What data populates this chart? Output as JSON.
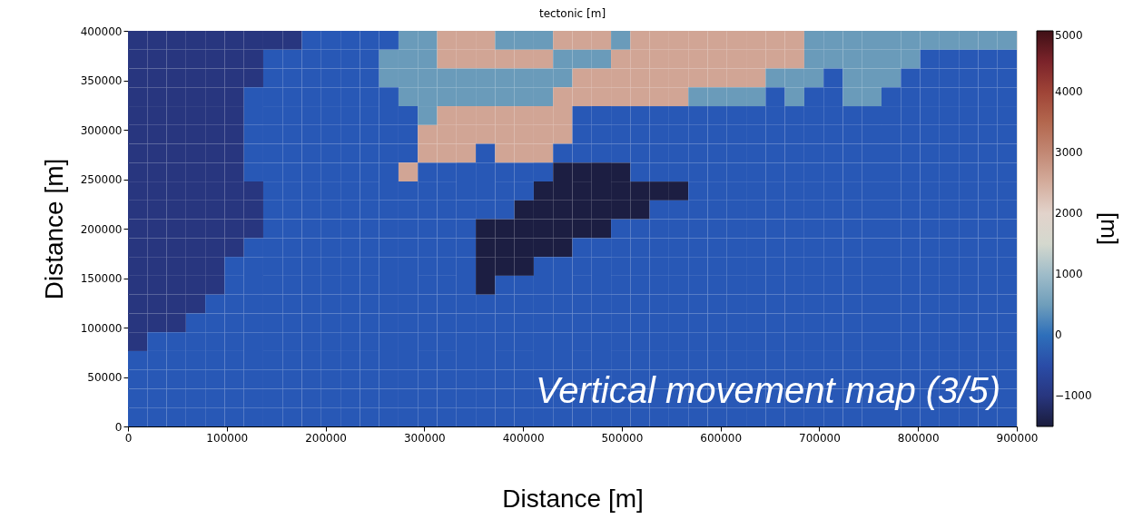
{
  "chart_data": {
    "type": "heatmap",
    "title": "tectonic [m]",
    "xlabel": "Distance [m]",
    "ylabel": "Distance [m]",
    "clabel": "[m]",
    "annotations": [
      "Vertical movement map (3/5)"
    ],
    "xlim": [
      0,
      900000
    ],
    "ylim": [
      0,
      400000
    ],
    "xticks": [
      0,
      100000,
      200000,
      300000,
      400000,
      500000,
      600000,
      700000,
      800000,
      900000
    ],
    "yticks": [
      0,
      50000,
      100000,
      150000,
      200000,
      250000,
      300000,
      350000,
      400000
    ],
    "clim": [
      -1500,
      5000
    ],
    "cticks": [
      -1000,
      0,
      1000,
      2000,
      3000,
      4000,
      5000
    ],
    "colors": [
      "#1a1c3c",
      "#2a3f95",
      "#2858b6",
      "#6a9bba",
      "#a9c2cc",
      "#e9e6e4",
      "#d8b4a6",
      "#c08470",
      "#ad5a3f",
      "#8e2a30",
      "#3f1016"
    ],
    "cells": [
      [
        -1000,
        -1000,
        -1000,
        -1000,
        -1000,
        -1000,
        -1000,
        -1000,
        -1000,
        -200,
        -200,
        -200,
        -200,
        -200,
        450,
        450,
        2600,
        2600,
        2600,
        450,
        450,
        450,
        2600,
        2600,
        2600,
        450,
        2600,
        2600,
        2600,
        2600,
        2600,
        2600,
        2600,
        2600,
        2600,
        450,
        450,
        450,
        450,
        450,
        450,
        450,
        450,
        450,
        450,
        450
      ],
      [
        -1000,
        -1000,
        -1000,
        -1000,
        -1000,
        -1000,
        -1000,
        -200,
        -200,
        -200,
        -200,
        -200,
        -200,
        450,
        450,
        450,
        2600,
        2600,
        2600,
        2600,
        2600,
        2600,
        450,
        450,
        450,
        2600,
        2600,
        2600,
        2600,
        2600,
        2600,
        2600,
        2600,
        2600,
        2600,
        450,
        450,
        450,
        450,
        450,
        450,
        -200,
        -200,
        -200,
        -200,
        -200
      ],
      [
        -1000,
        -1000,
        -1000,
        -1000,
        -1000,
        -1000,
        -1000,
        -200,
        -200,
        -200,
        -200,
        -200,
        -200,
        450,
        450,
        450,
        450,
        450,
        450,
        450,
        450,
        450,
        450,
        2600,
        2600,
        2600,
        2600,
        2600,
        2600,
        2600,
        2600,
        2600,
        2600,
        450,
        450,
        450,
        -200,
        450,
        450,
        450,
        -200,
        -200,
        -200,
        -200,
        -200,
        -200
      ],
      [
        -1000,
        -1000,
        -1000,
        -1000,
        -1000,
        -1000,
        -200,
        -200,
        -200,
        -200,
        -200,
        -200,
        -200,
        -200,
        450,
        450,
        450,
        450,
        450,
        450,
        450,
        450,
        2600,
        2600,
        2600,
        2600,
        2600,
        2600,
        2600,
        450,
        450,
        450,
        450,
        -200,
        450,
        -200,
        -200,
        450,
        450,
        -200,
        -200,
        -200,
        -200,
        -200,
        -200,
        -200
      ],
      [
        -1000,
        -1000,
        -1000,
        -1000,
        -1000,
        -1000,
        -200,
        -200,
        -200,
        -200,
        -200,
        -200,
        -200,
        -200,
        -200,
        450,
        2600,
        2600,
        2600,
        2600,
        2600,
        2600,
        2600,
        -200,
        -200,
        -200,
        -200,
        -200,
        -200,
        -200,
        -200,
        -200,
        -200,
        -200,
        -200,
        -200,
        -200,
        -200,
        -200,
        -200,
        -200,
        -200,
        -200,
        -200,
        -200,
        -200
      ],
      [
        -1000,
        -1000,
        -1000,
        -1000,
        -1000,
        -1000,
        -200,
        -200,
        -200,
        -200,
        -200,
        -200,
        -200,
        -200,
        -200,
        2600,
        2600,
        2600,
        2600,
        2600,
        2600,
        2600,
        2600,
        -200,
        -200,
        -200,
        -200,
        -200,
        -200,
        -200,
        -200,
        -200,
        -200,
        -200,
        -200,
        -200,
        -200,
        -200,
        -200,
        -200,
        -200,
        -200,
        -200,
        -200,
        -200,
        -200
      ],
      [
        -1000,
        -1000,
        -1000,
        -1000,
        -1000,
        -1000,
        -200,
        -200,
        -200,
        -200,
        -200,
        -200,
        -200,
        -200,
        -200,
        2600,
        2600,
        2600,
        -200,
        2600,
        2600,
        2600,
        -200,
        -200,
        -200,
        -200,
        -200,
        -200,
        -200,
        -200,
        -200,
        -200,
        -200,
        -200,
        -200,
        -200,
        -200,
        -200,
        -200,
        -200,
        -200,
        -200,
        -200,
        -200,
        -200,
        -200
      ],
      [
        -1000,
        -1000,
        -1000,
        -1000,
        -1000,
        -1000,
        -200,
        -200,
        -200,
        -200,
        -200,
        -200,
        -200,
        -200,
        2600,
        -200,
        -200,
        -200,
        -200,
        -200,
        -200,
        -200,
        -1450,
        -1450,
        -1450,
        -1450,
        -200,
        -200,
        -200,
        -200,
        -200,
        -200,
        -200,
        -200,
        -200,
        -200,
        -200,
        -200,
        -200,
        -200,
        -200,
        -200,
        -200,
        -200,
        -200,
        -200
      ],
      [
        -1000,
        -1000,
        -1000,
        -1000,
        -1000,
        -1000,
        -1000,
        -200,
        -200,
        -200,
        -200,
        -200,
        -200,
        -200,
        -200,
        -200,
        -200,
        -200,
        -200,
        -200,
        -200,
        -1450,
        -1450,
        -1450,
        -1450,
        -1450,
        -1450,
        -1450,
        -1450,
        -200,
        -200,
        -200,
        -200,
        -200,
        -200,
        -200,
        -200,
        -200,
        -200,
        -200,
        -200,
        -200,
        -200,
        -200,
        -200,
        -200
      ],
      [
        -1000,
        -1000,
        -1000,
        -1000,
        -1000,
        -1000,
        -1000,
        -200,
        -200,
        -200,
        -200,
        -200,
        -200,
        -200,
        -200,
        -200,
        -200,
        -200,
        -200,
        -200,
        -1450,
        -1450,
        -1450,
        -1450,
        -1450,
        -1450,
        -1450,
        -200,
        -200,
        -200,
        -200,
        -200,
        -200,
        -200,
        -200,
        -200,
        -200,
        -200,
        -200,
        -200,
        -200,
        -200,
        -200,
        -200,
        -200,
        -200
      ],
      [
        -1000,
        -1000,
        -1000,
        -1000,
        -1000,
        -1000,
        -1000,
        -200,
        -200,
        -200,
        -200,
        -200,
        -200,
        -200,
        -200,
        -200,
        -200,
        -200,
        -1450,
        -1450,
        -1450,
        -1450,
        -1450,
        -1450,
        -1450,
        -200,
        -200,
        -200,
        -200,
        -200,
        -200,
        -200,
        -200,
        -200,
        -200,
        -200,
        -200,
        -200,
        -200,
        -200,
        -200,
        -200,
        -200,
        -200,
        -200,
        -200
      ],
      [
        -1000,
        -1000,
        -1000,
        -1000,
        -1000,
        -1000,
        -200,
        -200,
        -200,
        -200,
        -200,
        -200,
        -200,
        -200,
        -200,
        -200,
        -200,
        -200,
        -1450,
        -1450,
        -1450,
        -1450,
        -1450,
        -200,
        -200,
        -200,
        -200,
        -200,
        -200,
        -200,
        -200,
        -200,
        -200,
        -200,
        -200,
        -200,
        -200,
        -200,
        -200,
        -200,
        -200,
        -200,
        -200,
        -200,
        -200,
        -200
      ],
      [
        -1000,
        -1000,
        -1000,
        -1000,
        -1000,
        -200,
        -200,
        -200,
        -200,
        -200,
        -200,
        -200,
        -200,
        -200,
        -200,
        -200,
        -200,
        -200,
        -1450,
        -1450,
        -1450,
        -200,
        -200,
        -200,
        -200,
        -200,
        -200,
        -200,
        -200,
        -200,
        -200,
        -200,
        -200,
        -200,
        -200,
        -200,
        -200,
        -200,
        -200,
        -200,
        -200,
        -200,
        -200,
        -200,
        -200,
        -200
      ],
      [
        -1000,
        -1000,
        -1000,
        -1000,
        -1000,
        -200,
        -200,
        -200,
        -200,
        -200,
        -200,
        -200,
        -200,
        -200,
        -200,
        -200,
        -200,
        -200,
        -1450,
        -200,
        -200,
        -200,
        -200,
        -200,
        -200,
        -200,
        -200,
        -200,
        -200,
        -200,
        -200,
        -200,
        -200,
        -200,
        -200,
        -200,
        -200,
        -200,
        -200,
        -200,
        -200,
        -200,
        -200,
        -200,
        -200,
        -200
      ],
      [
        -1000,
        -1000,
        -1000,
        -1000,
        -200,
        -200,
        -200,
        -200,
        -200,
        -200,
        -200,
        -200,
        -200,
        -200,
        -200,
        -200,
        -200,
        -200,
        -200,
        -200,
        -200,
        -200,
        -200,
        -200,
        -200,
        -200,
        -200,
        -200,
        -200,
        -200,
        -200,
        -200,
        -200,
        -200,
        -200,
        -200,
        -200,
        -200,
        -200,
        -200,
        -200,
        -200,
        -200,
        -200,
        -200,
        -200
      ],
      [
        -1000,
        -1000,
        -1000,
        -200,
        -200,
        -200,
        -200,
        -200,
        -200,
        -200,
        -200,
        -200,
        -200,
        -200,
        -200,
        -200,
        -200,
        -200,
        -200,
        -200,
        -200,
        -200,
        -200,
        -200,
        -200,
        -200,
        -200,
        -200,
        -200,
        -200,
        -200,
        -200,
        -200,
        -200,
        -200,
        -200,
        -200,
        -200,
        -200,
        -200,
        -200,
        -200,
        -200,
        -200,
        -200,
        -200
      ],
      [
        -1000,
        -200,
        -200,
        -200,
        -200,
        -200,
        -200,
        -200,
        -200,
        -200,
        -200,
        -200,
        -200,
        -200,
        -200,
        -200,
        -200,
        -200,
        -200,
        -200,
        -200,
        -200,
        -200,
        -200,
        -200,
        -200,
        -200,
        -200,
        -200,
        -200,
        -200,
        -200,
        -200,
        -200,
        -200,
        -200,
        -200,
        -200,
        -200,
        -200,
        -200,
        -200,
        -200,
        -200,
        -200,
        -200
      ],
      [
        -200,
        -200,
        -200,
        -200,
        -200,
        -200,
        -200,
        -200,
        -200,
        -200,
        -200,
        -200,
        -200,
        -200,
        -200,
        -200,
        -200,
        -200,
        -200,
        -200,
        -200,
        -200,
        -200,
        -200,
        -200,
        -200,
        -200,
        -200,
        -200,
        -200,
        -200,
        -200,
        -200,
        -200,
        -200,
        -200,
        -200,
        -200,
        -200,
        -200,
        -200,
        -200,
        -200,
        -200,
        -200,
        -200
      ],
      [
        -200,
        -200,
        -200,
        -200,
        -200,
        -200,
        -200,
        -200,
        -200,
        -200,
        -200,
        -200,
        -200,
        -200,
        -200,
        -200,
        -200,
        -200,
        -200,
        -200,
        -200,
        -200,
        -200,
        -200,
        -200,
        -200,
        -200,
        -200,
        -200,
        -200,
        -200,
        -200,
        -200,
        -200,
        -200,
        -200,
        -200,
        -200,
        -200,
        -200,
        -200,
        -200,
        -200,
        -200,
        -200,
        -200
      ],
      [
        -200,
        -200,
        -200,
        -200,
        -200,
        -200,
        -200,
        -200,
        -200,
        -200,
        -200,
        -200,
        -200,
        -200,
        -200,
        -200,
        -200,
        -200,
        -200,
        -200,
        -200,
        -200,
        -200,
        -200,
        -200,
        -200,
        -200,
        -200,
        -200,
        -200,
        -200,
        -200,
        -200,
        -200,
        -200,
        -200,
        -200,
        -200,
        -200,
        -200,
        -200,
        -200,
        -200,
        -200,
        -200,
        -200
      ],
      [
        -200,
        -200,
        -200,
        -200,
        -200,
        -200,
        -200,
        -200,
        -200,
        -200,
        -200,
        -200,
        -200,
        -200,
        -200,
        -200,
        -200,
        -200,
        -200,
        -200,
        -200,
        -200,
        -200,
        -200,
        -200,
        -200,
        -200,
        -200,
        -200,
        -200,
        -200,
        -200,
        -200,
        -200,
        -200,
        -200,
        -200,
        -200,
        -200,
        -200,
        -200,
        -200,
        -200,
        -200,
        -200,
        -200
      ]
    ]
  }
}
